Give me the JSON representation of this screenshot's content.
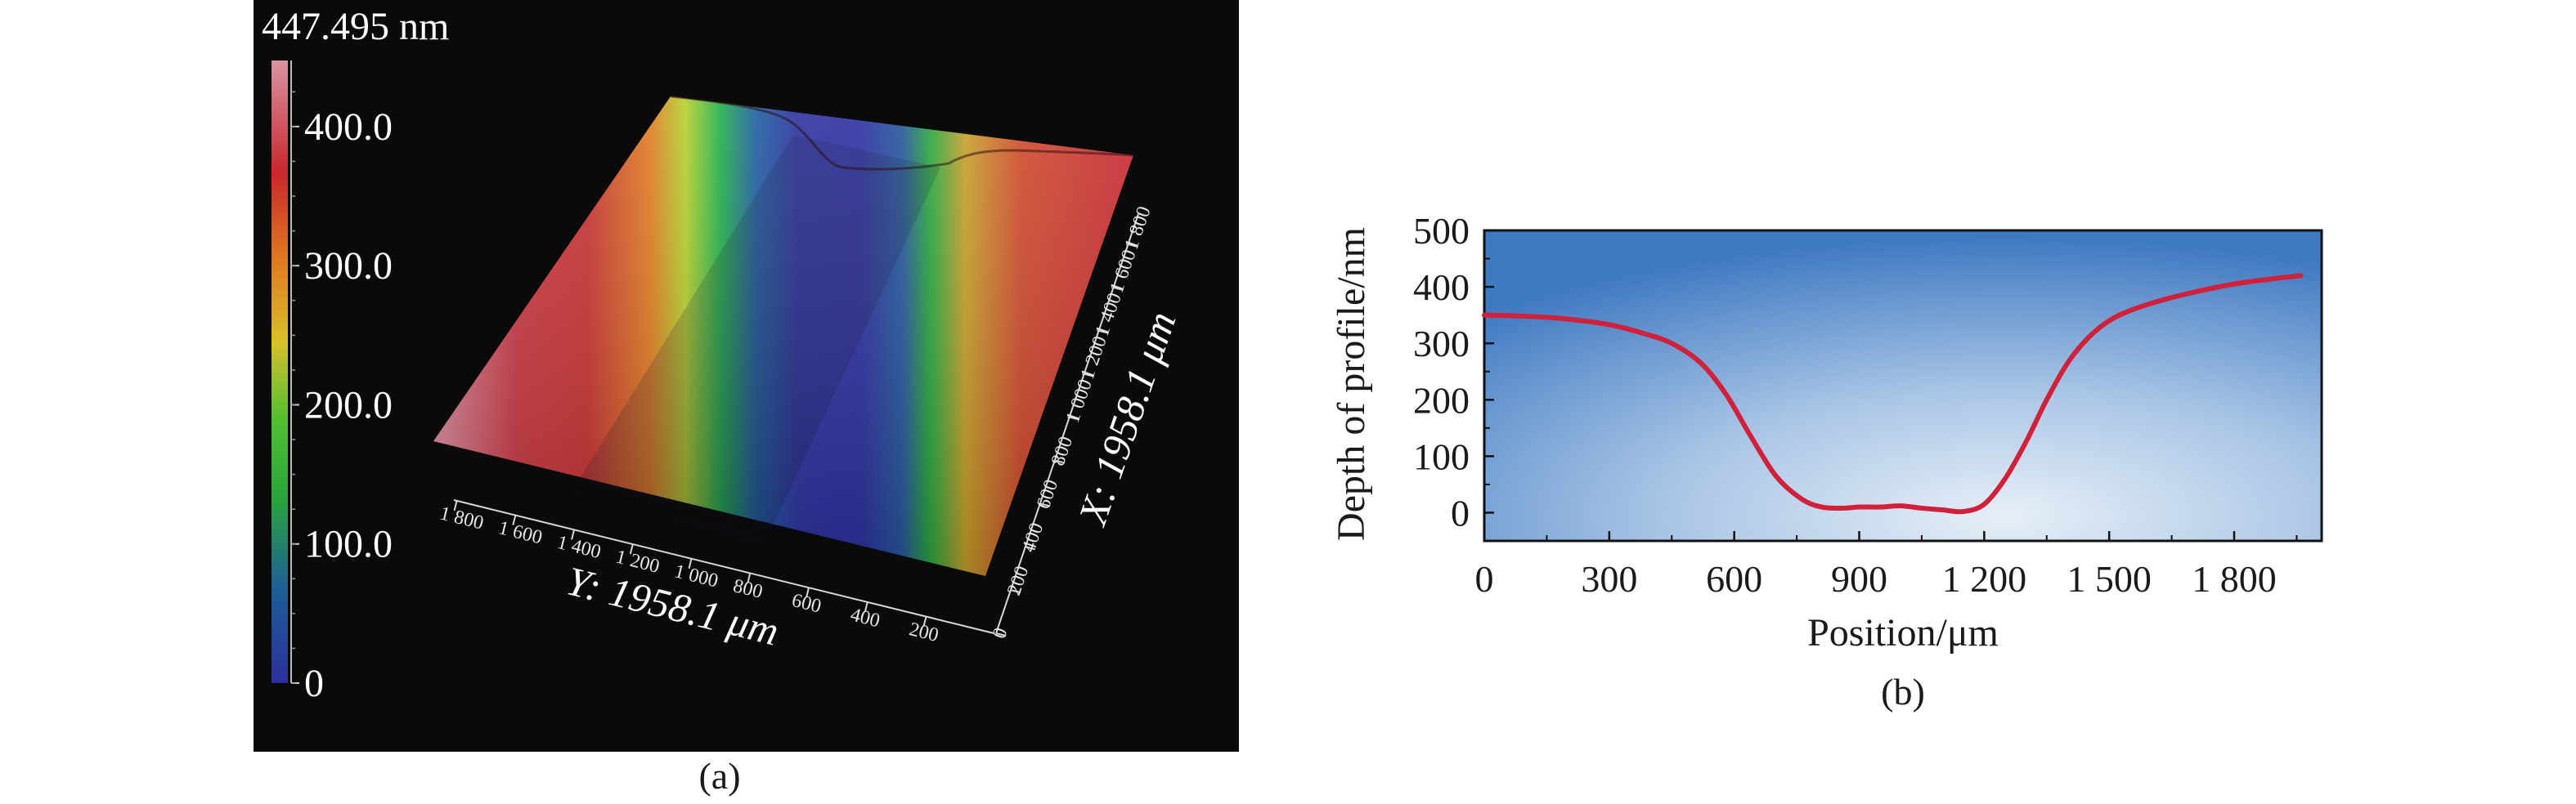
{
  "chart_data": [
    {
      "type": "surface3d",
      "panel": "(a)",
      "colorbar": {
        "max_label": "447.495 nm",
        "tick_labels": [
          "400.0",
          "300.0",
          "200.0",
          "100.0",
          "0"
        ],
        "tick_values": [
          400,
          300,
          200,
          100,
          0
        ],
        "range": [
          0,
          447.495
        ]
      },
      "x_axis": {
        "label": "X: 1958.1 μm",
        "tick_labels": [
          "0",
          "200",
          "400",
          "600",
          "800",
          "1 000",
          "1 200",
          "1 400",
          "1 600",
          "1 800"
        ]
      },
      "y_axis": {
        "label": "Y: 1958.1 μm",
        "tick_labels": [
          "1 800",
          "1 600",
          "1 400",
          "1 200",
          "1 000",
          "800",
          "600",
          "400",
          "200"
        ]
      },
      "colors": {
        "background": "#0a0a0a",
        "colormap": [
          "#2c2f9c",
          "#1e5a9a",
          "#2aa63a",
          "#b7c92a",
          "#e2b51c",
          "#d6452a",
          "#c42a33",
          "#d28c9c"
        ]
      }
    },
    {
      "type": "line",
      "panel": "(b)",
      "xlabel": "Position/μm",
      "ylabel": "Depth of profile/nm",
      "xlim": [
        0,
        2010
      ],
      "ylim": [
        -50,
        500
      ],
      "x_ticks": [
        0,
        300,
        600,
        900,
        1200,
        1500,
        1800
      ],
      "x_tick_labels": [
        "0",
        "300",
        "600",
        "900",
        "1 200",
        "1 500",
        "1 800"
      ],
      "y_ticks": [
        0,
        100,
        200,
        300,
        400,
        500
      ],
      "y_tick_labels": [
        "0",
        "100",
        "200",
        "300",
        "400",
        "500"
      ],
      "series": [
        {
          "color": "#d0203a",
          "x": [
            0,
            100,
            200,
            300,
            380,
            450,
            520,
            580,
            640,
            700,
            760,
            810,
            860,
            900,
            950,
            1000,
            1050,
            1100,
            1150,
            1200,
            1250,
            1300,
            1350,
            1400,
            1450,
            1500,
            1550,
            1620,
            1700,
            1800,
            1900,
            1960
          ],
          "y": [
            350,
            348,
            343,
            333,
            318,
            300,
            265,
            210,
            135,
            65,
            25,
            10,
            8,
            10,
            10,
            12,
            8,
            5,
            2,
            15,
            60,
            125,
            200,
            265,
            310,
            340,
            358,
            375,
            390,
            405,
            415,
            420
          ]
        }
      ],
      "colors": {
        "plot_bg_dark": "#3f79c2",
        "plot_bg_light": "#e3edf6"
      }
    }
  ]
}
